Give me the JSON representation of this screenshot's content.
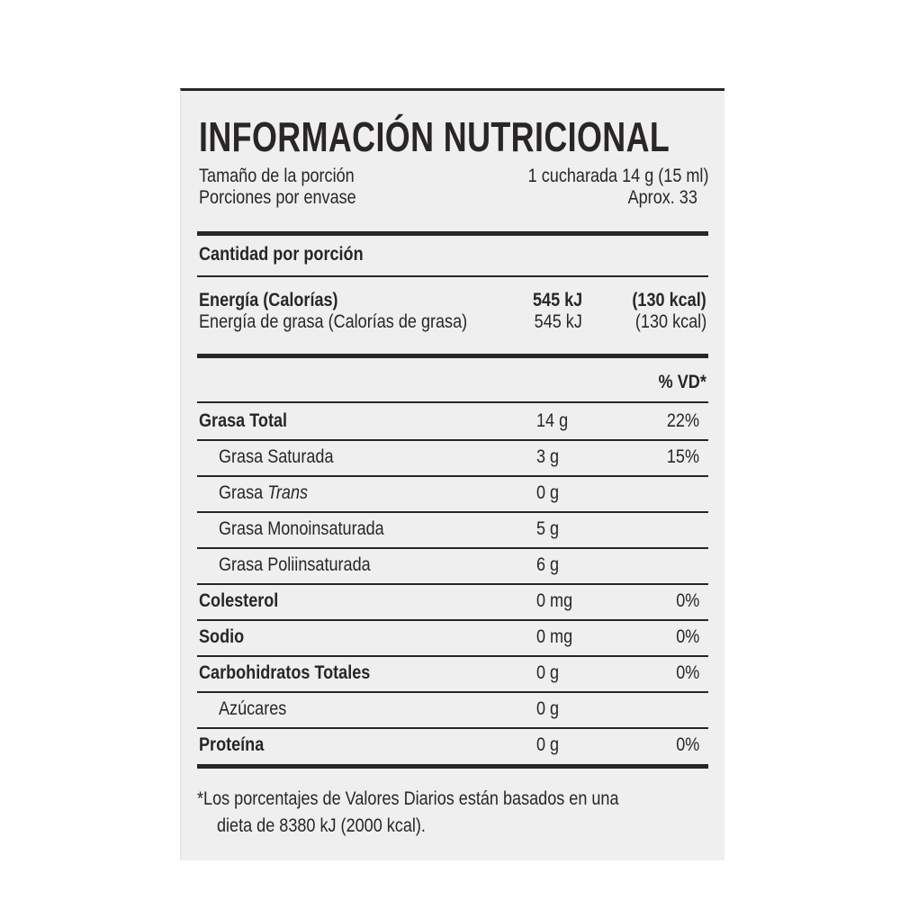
{
  "title": "INFORMACIÓN NUTRICIONAL",
  "serving": {
    "size_label": "Tamaño de la porción",
    "size_value": "1 cucharada 14 g (15 ml)",
    "per_label": "Porciones por envase",
    "per_value": "Aprox. 33"
  },
  "amount_header": "Cantidad por porción",
  "energy": {
    "label": "Energía (Calorías)",
    "kj": "545 kJ",
    "kcal": "(130 kcal)",
    "fat_label": "Energía de grasa (Calorías de grasa)",
    "fat_kj": "545 kJ",
    "fat_kcal": "(130 kcal)"
  },
  "dv_header": "% VD*",
  "nutrients": [
    {
      "label": "Grasa Total",
      "amount": "14 g",
      "dv": "22%",
      "bold": true
    },
    {
      "label": "Grasa Saturada",
      "amount": "3 g",
      "dv": "15%",
      "bold": false
    },
    {
      "label": "Grasa ",
      "label_italic": "Trans",
      "amount": "0 g",
      "dv": "",
      "bold": false
    },
    {
      "label": "Grasa Monoinsaturada",
      "amount": "5 g",
      "dv": "",
      "bold": false
    },
    {
      "label": "Grasa Poliinsaturada",
      "amount": "6 g",
      "dv": "",
      "bold": false
    },
    {
      "label": "Colesterol",
      "amount": "0 mg",
      "dv": "0%",
      "bold": true
    },
    {
      "label": "Sodio",
      "amount": "0 mg",
      "dv": "0%",
      "bold": true
    },
    {
      "label": "Carbohidratos Totales",
      "amount": "0 g",
      "dv": "0%",
      "bold": true
    },
    {
      "label": "Azúcares",
      "amount": "0 g",
      "dv": "",
      "bold": false
    },
    {
      "label": "Proteína",
      "amount": "0 g",
      "dv": "0%",
      "bold": true
    }
  ],
  "footnote": {
    "line1": "*Los porcentajes de Valores Diarios están basados en una",
    "line2": "dieta de 8380 kJ (2000 kcal)."
  }
}
